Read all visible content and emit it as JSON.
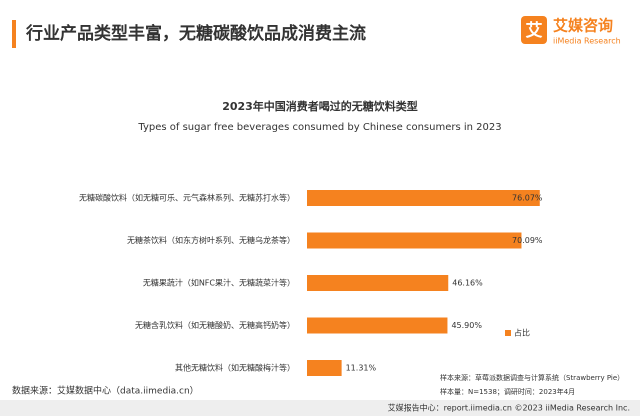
{
  "header": {
    "title": "行业产品类型丰富，无糖碳酸饮品成消费主流",
    "logo_icon": "艾",
    "logo": "艾媒咨询",
    "logo_sub": "iiMedia Research"
  },
  "chart_data": {
    "type": "bar",
    "orientation": "horizontal",
    "title": "2023年中国消费者喝过的无糖饮料类型",
    "subtitle": "Types of sugar free beverages consumed by Chinese consumers in 2023",
    "categories": [
      "无糖碳酸饮料（如无糖可乐、元气森林系列、无糖苏打水等）",
      "无糖茶饮料（如东方树叶系列、无糖乌龙茶等）",
      "无糖果蔬汁（如NFC果汁、无糖蔬菜汁等）",
      "无糖含乳饮料（如无糖酸奶、无糖高钙奶等）",
      "其他无糖饮料（如无糖酸梅汁等）"
    ],
    "series": [
      {
        "name": "占比",
        "color": "#f5821f",
        "values": [
          76.07,
          70.09,
          46.16,
          45.9,
          11.31
        ],
        "value_labels": [
          "76.07%",
          "70.09%",
          "46.16%",
          "45.90%",
          "11.31%"
        ]
      }
    ],
    "legend": "bottom-right"
  },
  "notes": {
    "sample_source": "样本来源：草莓派数据调查与计算系统（Strawberry Pie）",
    "sample_size": "样本量：N=1538；调研时间：2023年4月"
  },
  "source": "数据来源：艾媒数据中心（data.iimedia.cn）",
  "footer": "艾媒报告中心：report.iimedia.cn  ©2023  iiMedia Research Inc."
}
